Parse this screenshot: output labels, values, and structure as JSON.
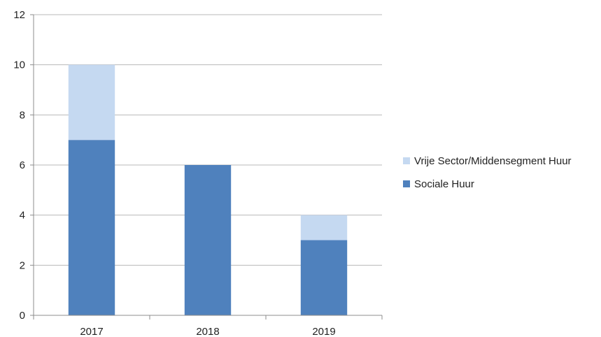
{
  "chart_data": {
    "type": "bar",
    "stacked": true,
    "categories": [
      "2017",
      "2018",
      "2019"
    ],
    "series": [
      {
        "name": "Sociale Huur",
        "values": [
          7,
          6,
          3
        ],
        "color": "#4f81bd"
      },
      {
        "name": "Vrije Sector/Middensegment Huur",
        "values": [
          3,
          0,
          1
        ],
        "color": "#c5d9f1"
      }
    ],
    "title": "",
    "xlabel": "",
    "ylabel": "",
    "ylim": [
      0,
      12
    ],
    "yticks": [
      "0",
      "2",
      "4",
      "6",
      "8",
      "10",
      "12"
    ],
    "grid": true,
    "legend_position": "right",
    "legend_order": [
      "Vrije Sector/Middensegment Huur",
      "Sociale Huur"
    ]
  }
}
